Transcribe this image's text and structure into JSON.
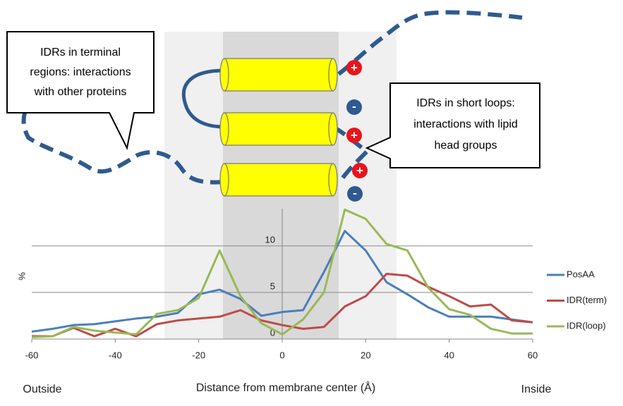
{
  "chart_data": {
    "type": "line",
    "x": [
      -60,
      -55,
      -50,
      -45,
      -40,
      -35,
      -30,
      -25,
      -20,
      -15,
      -10,
      -5,
      0,
      5,
      10,
      15,
      20,
      25,
      30,
      35,
      40,
      45,
      50,
      55,
      60
    ],
    "series": [
      {
        "name": "PosAA",
        "color": "#4a7ebb",
        "values": [
          0.8,
          1.1,
          1.5,
          1.6,
          1.9,
          2.2,
          2.4,
          2.8,
          4.8,
          5.3,
          4.3,
          2.5,
          2.9,
          3.1,
          7.2,
          11.6,
          9.5,
          6.1,
          4.8,
          3.4,
          2.4,
          2.4,
          2.4,
          2.1,
          1.8
        ]
      },
      {
        "name": "IDR(term)",
        "color": "#be4b48",
        "values": [
          0.3,
          0.3,
          1.2,
          0.3,
          1.1,
          0.3,
          1.6,
          2.0,
          2.2,
          2.4,
          3.1,
          2.0,
          1.5,
          1.1,
          1.3,
          3.5,
          4.6,
          7.0,
          6.8,
          5.6,
          4.6,
          3.5,
          3.7,
          2.0,
          1.8
        ]
      },
      {
        "name": "IDR(loop)",
        "color": "#98b954",
        "values": [
          0.2,
          0.3,
          1.3,
          0.9,
          0.7,
          0.5,
          2.7,
          3.1,
          4.4,
          9.5,
          4.6,
          1.7,
          0.5,
          2.1,
          5.0,
          13.9,
          12.9,
          10.2,
          9.5,
          5.5,
          3.2,
          2.6,
          1.1,
          0.6,
          0.6
        ]
      }
    ],
    "xlim": [
      -60,
      60
    ],
    "xticks": [
      -60,
      -40,
      -20,
      0,
      20,
      40,
      60
    ],
    "ylim": [
      0,
      14
    ],
    "yticks": [
      0,
      5,
      10
    ],
    "y_label": "%",
    "x_label": "Distance from membrane center (Å)",
    "x_end_labels": [
      "Outside",
      "Inside"
    ],
    "grid": true,
    "legend": "right"
  },
  "diagram": {
    "callouts": [
      {
        "lines": [
          "IDRs in terminal",
          "regions: interactions",
          "with other proteins"
        ]
      },
      {
        "lines": [
          "IDRs in short loops:",
          "interactions with lipid",
          "head groups"
        ]
      }
    ],
    "charges": [
      "+",
      "-",
      "+",
      "+",
      "-"
    ]
  }
}
